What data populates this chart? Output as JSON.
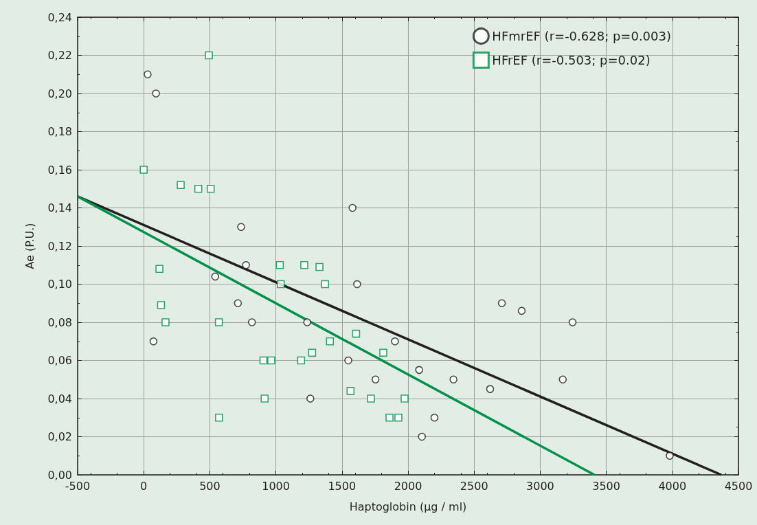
{
  "chart_data": {
    "type": "scatter",
    "xlabel": "Haptoglobin (µg / ml)",
    "ylabel": "Ae (P.U.)",
    "xlim": [
      -500,
      4500
    ],
    "xticks": [
      -500,
      0,
      500,
      1000,
      1500,
      2000,
      2500,
      3000,
      3500,
      4000,
      4500
    ],
    "ylim": [
      0,
      0.24
    ],
    "yticks": [
      {
        "value": 0,
        "label": "0,00"
      },
      {
        "value": 0.02,
        "label": "0,02"
      },
      {
        "value": 0.04,
        "label": "0,04"
      },
      {
        "value": 0.06,
        "label": "0,06"
      },
      {
        "value": 0.08,
        "label": "0,08"
      },
      {
        "value": 0.1,
        "label": "0,10"
      },
      {
        "value": 0.12,
        "label": "0,12"
      },
      {
        "value": 0.14,
        "label": "0,14"
      },
      {
        "value": 0.16,
        "label": "0,16"
      },
      {
        "value": 0.18,
        "label": "0,18"
      },
      {
        "value": 0.2,
        "label": "0,20"
      },
      {
        "value": 0.22,
        "label": "0,22"
      },
      {
        "value": 0.24,
        "label": "0,24"
      }
    ],
    "grid": true,
    "legend": "top right",
    "series": [
      {
        "name": "HFmrEF (r=-0.628; p=0.003)",
        "color": "#231f20",
        "marker": "circle",
        "x": [
          30,
          93,
          1580,
          737,
          774,
          541,
          1615,
          713,
          819,
          1237,
          74,
          1548,
          1754,
          1261,
          1901,
          2084,
          2344,
          2621,
          2710,
          2860,
          3245,
          3171,
          2200,
          2105,
          3980
        ],
        "values": [
          0.21,
          0.2,
          0.14,
          0.13,
          0.11,
          0.104,
          0.1,
          0.09,
          0.08,
          0.08,
          0.07,
          0.06,
          0.05,
          0.04,
          0.07,
          0.055,
          0.05,
          0.045,
          0.09,
          0.086,
          0.08,
          0.05,
          0.03,
          0.02,
          0.01
        ]
      },
      {
        "name": "HFrEF (r=-0.503; p=0.02)",
        "color": "#00904a",
        "marker": "square",
        "x": [
          493,
          0,
          280,
          413,
          507,
          119,
          1030,
          1215,
          1330,
          1037,
          1372,
          131,
          165,
          569,
          1607,
          1409,
          1274,
          1813,
          906,
          965,
          1191,
          1565,
          915,
          1719,
          1974,
          570,
          1860,
          1927
        ],
        "values": [
          0.22,
          0.16,
          0.152,
          0.15,
          0.15,
          0.108,
          0.11,
          0.11,
          0.109,
          0.1,
          0.1,
          0.089,
          0.08,
          0.08,
          0.074,
          0.07,
          0.064,
          0.064,
          0.06,
          0.06,
          0.06,
          0.044,
          0.04,
          0.04,
          0.04,
          0.03,
          0.03,
          0.03
        ]
      },
      {
        "type": "line",
        "color": "#231f20",
        "marker": "none",
        "line_style": "solid",
        "x": [
          -500,
          4370
        ],
        "values": [
          0.146,
          0
        ]
      },
      {
        "type": "line",
        "color": "#00904a",
        "marker": "none",
        "line_style": "solid",
        "x": [
          -500,
          3410
        ],
        "values": [
          0.146,
          0
        ]
      }
    ]
  }
}
